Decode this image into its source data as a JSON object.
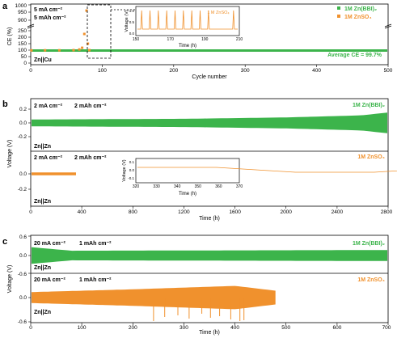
{
  "colors": {
    "zn_bbi": "#3cb44b",
    "znso4": "#f0912d"
  },
  "chart_data": [
    {
      "panel": "a",
      "type": "scatter",
      "xlabel": "Cycle number",
      "ylabel": "CE (%)",
      "xlim": [
        0,
        500
      ],
      "xticks": [
        "0",
        "100",
        "200",
        "300",
        "400",
        "500"
      ],
      "yticks": [
        "0",
        "50",
        "100",
        "150",
        "200",
        "250",
        "900",
        "950",
        "1000"
      ],
      "conditions": [
        "5 mA cm⁻²",
        "5 mAh cm⁻²"
      ],
      "cell": "Zn||Cu",
      "annotation": "Average CE = 99.7%",
      "series": [
        {
          "name": "1M Zn(BBI)₂",
          "color": "#3cb44b",
          "x": [
            1,
            100,
            200,
            300,
            400,
            500
          ],
          "y": [
            99.7,
            99.7,
            99.7,
            99.7,
            99.7,
            99.7
          ]
        },
        {
          "name": "1M ZnSO₄",
          "color": "#f0912d",
          "x": [
            1,
            20,
            40,
            60,
            68,
            72,
            75,
            78,
            80,
            82
          ],
          "y": [
            98,
            99,
            99,
            100,
            105,
            118,
            225,
            960,
            150,
            100
          ]
        }
      ],
      "inset": {
        "series_name": "1 M ZnSO₄",
        "xlabel": "Time (h)",
        "ylabel": "Voltage (V)",
        "xticks": [
          "150",
          "170",
          "190",
          "210"
        ],
        "yticks": [
          "0.0",
          "0.5",
          "1.0"
        ]
      }
    },
    {
      "panel": "b",
      "type": "line",
      "xlabel": "Time (h)",
      "ylabel": "Voltage (V)",
      "xlim": [
        0,
        2800
      ],
      "xticks": [
        "0",
        "400",
        "800",
        "1200",
        "1600",
        "2000",
        "2400",
        "2800"
      ],
      "yticks_top": [
        "0.2",
        "0.0",
        "-0.2"
      ],
      "yticks_bottom": [
        "0.0",
        "-0.2"
      ],
      "conditions": [
        "2 mA cm⁻²",
        "2 mAh cm⁻²"
      ],
      "cell": "Zn||Zn",
      "series": [
        {
          "name": "1M Zn(BBI)₂",
          "color": "#3cb44b",
          "x_end": 2800,
          "amplitude_v": {
            "x": [
              0,
              1200,
              2000,
              2600,
              2800
            ],
            "y": [
              0.05,
              0.06,
              0.08,
              0.11,
              0.15
            ]
          }
        },
        {
          "name": "1M ZnSO₄",
          "color": "#f0912d",
          "x_end": 350,
          "amplitude_v": {
            "x": [
              0,
              350
            ],
            "y": [
              0.02,
              0.02
            ]
          }
        }
      ],
      "inset": {
        "xlabel": "Time (h)",
        "ylabel": "Voltage (V)",
        "xticks": [
          "320",
          "330",
          "340",
          "350",
          "360",
          "370"
        ],
        "yticks": [
          "0.1",
          "0.0",
          "-0.1"
        ]
      }
    },
    {
      "panel": "c",
      "type": "line",
      "xlabel": "Time (h)",
      "ylabel": "Voltage (V)",
      "xlim": [
        0,
        700
      ],
      "xticks": [
        "0",
        "100",
        "200",
        "300",
        "400",
        "500",
        "600",
        "700"
      ],
      "yticks_top": [
        "0.6"
      ],
      "yticks_mid": [
        "0.0",
        "-0.6"
      ],
      "yticks_bottom": [
        "0.0",
        "-0.6"
      ],
      "conditions": [
        "20 mA cm⁻²",
        "1 mAh cm⁻²"
      ],
      "cell": "Zn||Zn",
      "series": [
        {
          "name": "1M Zn(BBI)₂",
          "color": "#3cb44b",
          "x_end": 700,
          "amplitude_v": {
            "x": [
              0,
              80,
              700
            ],
            "y": [
              0.12,
              0.07,
              0.08
            ]
          }
        },
        {
          "name": "1M ZnSO₄",
          "color": "#f0912d",
          "x_end": 480,
          "amplitude_v": {
            "x": [
              0,
              100,
              200,
              400,
              480
            ],
            "y": [
              0.08,
              0.1,
              0.12,
              0.17,
              0.1
            ]
          }
        }
      ]
    }
  ]
}
